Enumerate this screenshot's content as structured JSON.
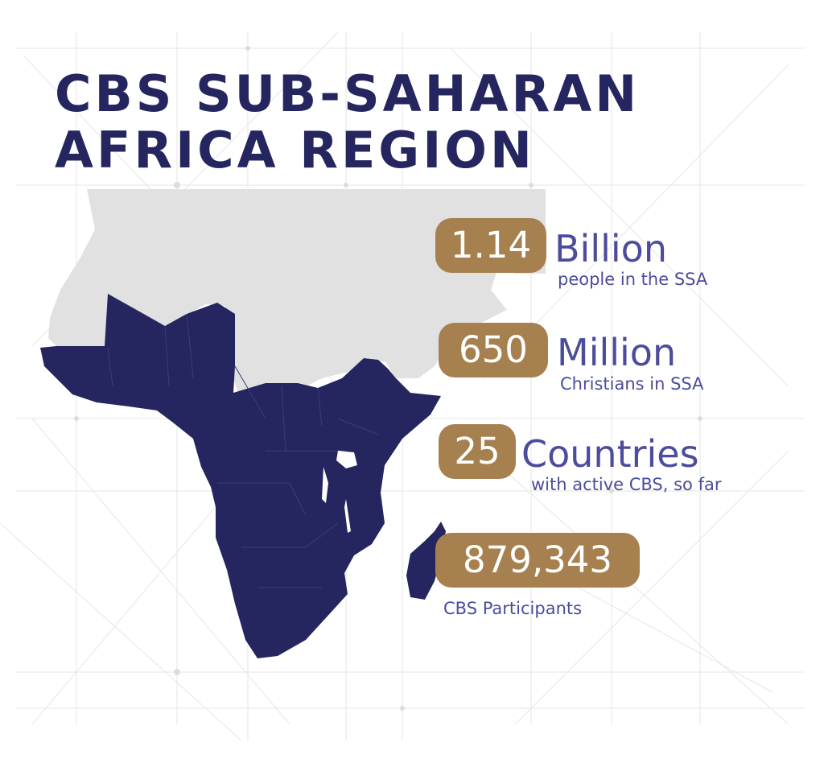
{
  "title": {
    "line1": "CBS SUB-SAHARAN",
    "line2": "AFRICA REGION"
  },
  "stats": [
    {
      "value": "1.14",
      "unit": "Billion",
      "caption": "people in the SSA"
    },
    {
      "value": "650",
      "unit": "Million",
      "caption": "Christians in SSA"
    },
    {
      "value": "25",
      "unit": "Countries",
      "caption": "with active CBS, so far"
    },
    {
      "value": "879,343",
      "unit": "",
      "caption": "CBS Participants"
    }
  ],
  "colors": {
    "title": "#25255f",
    "ssa_region": "#25255f",
    "other_land": "#e1e1e1",
    "pill": "#a6814f",
    "stat_text": "#4b4c9c"
  }
}
